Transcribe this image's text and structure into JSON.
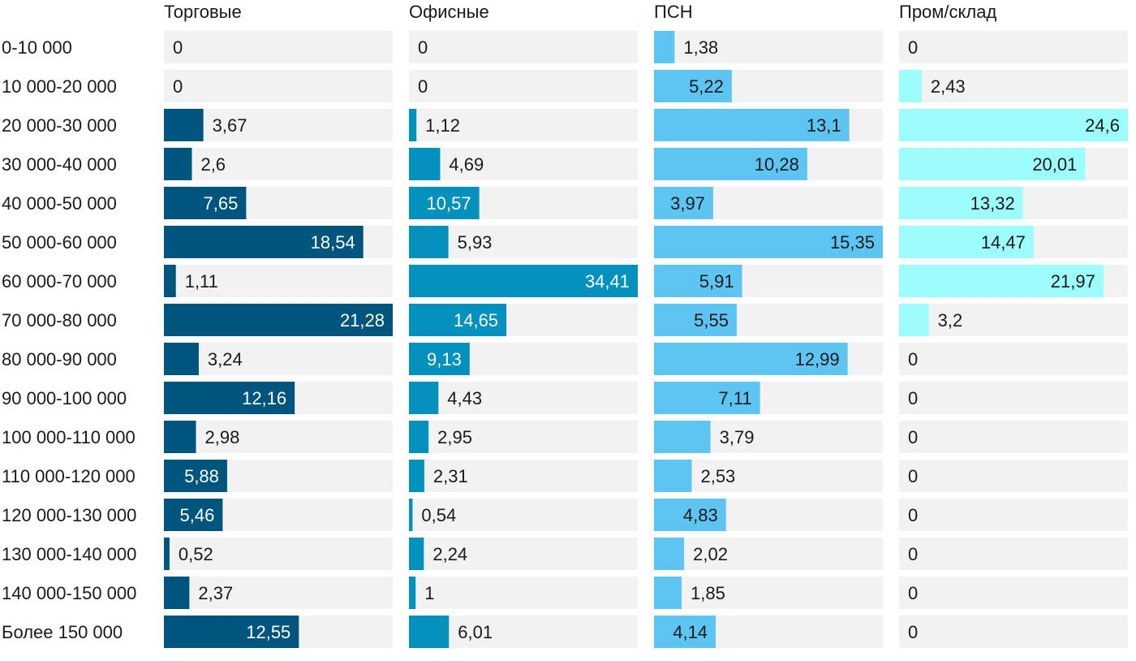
{
  "chart_data": {
    "type": "bar",
    "orientation": "horizontal",
    "layout": "small-multiples",
    "categories": [
      "0-10 000",
      "10 000-20 000",
      "20 000-30 000",
      "30 000-40 000",
      "40 000-50 000",
      "50 000-60 000",
      "60 000-70 000",
      "70 000-80 000",
      "80 000-90 000",
      "90 000-100 000",
      "100 000-110 000",
      "110 000-120 000",
      "120 000-130 000",
      "130 000-140 000",
      "140 000-150 000",
      "Более 150 000"
    ],
    "series": [
      {
        "name": "Торговые",
        "color": "#00557f",
        "max": 21.28,
        "values": [
          0,
          0,
          3.67,
          2.6,
          7.65,
          18.54,
          1.11,
          21.28,
          3.24,
          12.16,
          2.98,
          5.88,
          5.46,
          0.52,
          2.37,
          12.55
        ],
        "labels": [
          "0",
          "0",
          "3,67",
          "2,6",
          "7,65",
          "18,54",
          "1,11",
          "21,28",
          "3,24",
          "12,16",
          "2,98",
          "5,88",
          "5,46",
          "0,52",
          "2,37",
          "12,55"
        ]
      },
      {
        "name": "Офисные",
        "color": "#0591be",
        "max": 34.41,
        "values": [
          0,
          0,
          1.12,
          4.69,
          10.57,
          5.93,
          34.41,
          14.65,
          9.13,
          4.43,
          2.95,
          2.31,
          0.54,
          2.24,
          1,
          6.01
        ],
        "labels": [
          "0",
          "0",
          "1,12",
          "4,69",
          "10,57",
          "5,93",
          "34,41",
          "14,65",
          "9,13",
          "4,43",
          "2,95",
          "2,31",
          "0,54",
          "2,24",
          "1",
          "6,01"
        ]
      },
      {
        "name": "ПСН",
        "color": "#5ec5f2",
        "max": 15.35,
        "values": [
          1.38,
          5.22,
          13.1,
          10.28,
          3.97,
          15.35,
          5.91,
          5.55,
          12.99,
          7.11,
          3.79,
          2.53,
          4.83,
          2.02,
          1.85,
          4.14
        ],
        "labels": [
          "1,38",
          "5,22",
          "13,1",
          "10,28",
          "3,97",
          "15,35",
          "5,91",
          "5,55",
          "12,99",
          "7,11",
          "3,79",
          "2,53",
          "4,83",
          "2,02",
          "1,85",
          "4,14"
        ]
      },
      {
        "name": "Пром/склад",
        "color": "#9dfdfc",
        "max": 24.6,
        "values": [
          0,
          2.43,
          24.6,
          20.01,
          13.32,
          14.47,
          21.97,
          3.2,
          0,
          0,
          0,
          0,
          0,
          0,
          0,
          0
        ],
        "labels": [
          "0",
          "2,43",
          "24,6",
          "20,01",
          "13,32",
          "14,47",
          "21,97",
          "3,2",
          "0",
          "0",
          "0",
          "0",
          "0",
          "0",
          "0",
          "0"
        ]
      }
    ],
    "track_color": "#f2f2f2",
    "label_color_dark": "#1a1a1a",
    "label_color_light": "#ffffff"
  }
}
